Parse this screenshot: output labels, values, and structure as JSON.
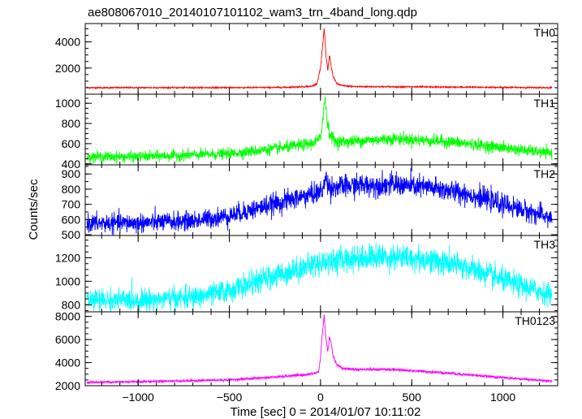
{
  "chart_data": {
    "type": "line",
    "title": "ae808067010_20140107101102_wam3_trn_4band_long.qdp",
    "xlabel": "Time [sec] 0 = 2014/01/07 10:11:02",
    "ylabel": "Counts/sec",
    "xlim": [
      -1290,
      1300
    ],
    "x_ticks": [
      "−1000",
      "−500",
      "0",
      "500",
      "1000"
    ],
    "x_tick_values": [
      -1000,
      -500,
      0,
      500,
      1000
    ],
    "x_minor_step": 100,
    "grid": false,
    "panels": [
      {
        "name": "TH0",
        "color": "#ff0000",
        "ylim": [
          0,
          5400
        ],
        "y_ticks": [
          2000,
          4000
        ],
        "y_minor_step": 500,
        "noise": 25,
        "x": [
          -1280,
          -1000,
          -500,
          -200,
          -50,
          -20,
          0,
          10,
          20,
          30,
          40,
          45,
          50,
          60,
          70,
          90,
          120,
          200,
          500,
          1000,
          1270
        ],
        "values": [
          500,
          500,
          500,
          520,
          600,
          800,
          2000,
          3500,
          5000,
          3000,
          1800,
          2500,
          3000,
          2000,
          1300,
          800,
          650,
          580,
          560,
          520,
          500
        ]
      },
      {
        "name": "TH1",
        "color": "#00ff00",
        "ylim": [
          390,
          1090
        ],
        "y_ticks": [
          400,
          600,
          800,
          1000
        ],
        "y_minor_step": 50,
        "noise": 25,
        "x": [
          -1280,
          -1000,
          -500,
          -200,
          -50,
          0,
          15,
          25,
          35,
          50,
          80,
          150,
          400,
          700,
          1000,
          1270
        ],
        "values": [
          470,
          470,
          500,
          560,
          600,
          650,
          900,
          1050,
          850,
          700,
          620,
          620,
          650,
          620,
          560,
          500
        ]
      },
      {
        "name": "TH2",
        "color": "#0000ff",
        "ylim": [
          495,
          960
        ],
        "y_ticks": [
          500,
          600,
          700,
          800,
          900
        ],
        "y_minor_step": 50,
        "noise": 30,
        "x": [
          -1280,
          -1000,
          -700,
          -500,
          -200,
          0,
          20,
          30,
          50,
          200,
          400,
          600,
          800,
          1000,
          1270
        ],
        "values": [
          575,
          578,
          590,
          625,
          720,
          780,
          820,
          880,
          810,
          825,
          830,
          810,
          770,
          700,
          610
        ]
      },
      {
        "name": "TH3",
        "color": "#00ffff",
        "ylim": [
          740,
          1390
        ],
        "y_ticks": [
          800,
          1000,
          1200
        ],
        "y_minor_step": 50,
        "noise": 45,
        "x": [
          -1280,
          -1000,
          -700,
          -500,
          -200,
          0,
          200,
          400,
          600,
          800,
          1000,
          1270
        ],
        "values": [
          840,
          840,
          860,
          920,
          1070,
          1160,
          1200,
          1210,
          1180,
          1120,
          1010,
          880
        ]
      },
      {
        "name": "TH0123",
        "color": "#ff00ff",
        "ylim": [
          2000,
          8400
        ],
        "y_ticks": [
          2000,
          4000,
          6000,
          8000
        ],
        "y_minor_step": 500,
        "noise": 50,
        "x": [
          -1280,
          -1000,
          -500,
          -200,
          -50,
          -10,
          0,
          10,
          20,
          30,
          40,
          50,
          60,
          70,
          90,
          120,
          200,
          400,
          700,
          1000,
          1270
        ],
        "values": [
          2300,
          2350,
          2500,
          2800,
          3000,
          3200,
          4500,
          6500,
          8100,
          6000,
          5000,
          6200,
          5500,
          4500,
          3800,
          3500,
          3400,
          3400,
          3100,
          2700,
          2400
        ]
      }
    ]
  }
}
